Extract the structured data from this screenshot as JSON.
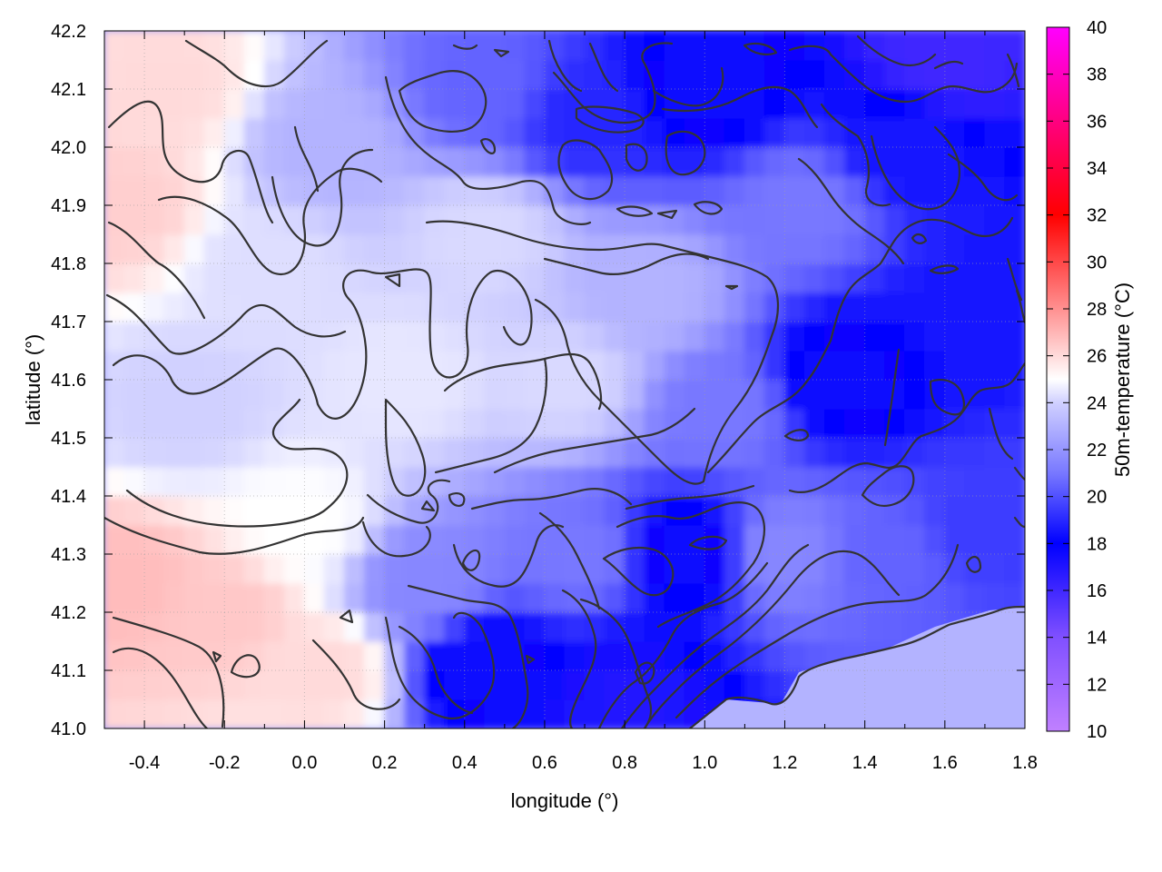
{
  "chart_data": {
    "type": "heatmap",
    "title": "",
    "xlabel": "longitude (°)",
    "ylabel": "latitude (°)",
    "colorbar_label": "50m-temperature (°C)",
    "xlim": [
      -0.5,
      1.8
    ],
    "ylim": [
      41.0,
      42.2
    ],
    "x_ticks": [
      -0.4,
      -0.2,
      0.0,
      0.2,
      0.4,
      0.6,
      0.8,
      1.0,
      1.2,
      1.4,
      1.6,
      1.8
    ],
    "x_tick_labels": [
      "-0.4",
      "-0.2",
      "0.0",
      "0.2",
      "0.4",
      "0.6",
      "0.8",
      "1.0",
      "1.2",
      "1.4",
      "1.6",
      "1.8"
    ],
    "y_ticks": [
      41.0,
      41.1,
      41.2,
      41.3,
      41.4,
      41.5,
      41.6,
      41.7,
      41.8,
      41.9,
      42.0,
      42.1,
      42.2
    ],
    "y_tick_labels": [
      "41.0",
      "41.1",
      "41.2",
      "41.3",
      "41.4",
      "41.5",
      "41.6",
      "41.7",
      "41.8",
      "41.9",
      "42.0",
      "42.1",
      "42.2"
    ],
    "colorbar_range": [
      10,
      40
    ],
    "colorbar_ticks": [
      10,
      12,
      14,
      16,
      18,
      20,
      22,
      24,
      26,
      28,
      30,
      32,
      34,
      36,
      38,
      40
    ],
    "colorbar_tick_labels": [
      "10",
      "12",
      "14",
      "16",
      "18",
      "20",
      "22",
      "24",
      "26",
      "28",
      "30",
      "32",
      "34",
      "36",
      "38",
      "40"
    ],
    "colormap": [
      {
        "value": 10,
        "color": "#c080ff"
      },
      {
        "value": 14,
        "color": "#8050ff"
      },
      {
        "value": 18,
        "color": "#0000ff"
      },
      {
        "value": 21,
        "color": "#7878ff"
      },
      {
        "value": 24,
        "color": "#d0d0ff"
      },
      {
        "value": 25,
        "color": "#ffffff"
      },
      {
        "value": 28,
        "color": "#ff9090"
      },
      {
        "value": 32,
        "color": "#ff0000"
      },
      {
        "value": 36,
        "color": "#ff0080"
      },
      {
        "value": 40,
        "color": "#ff00ff"
      }
    ],
    "grid": true,
    "contours": true,
    "sea_temperature": 23,
    "field_points": [
      {
        "lon": -0.45,
        "lat": 41.9,
        "temp": 26.3
      },
      {
        "lon": -0.45,
        "lat": 41.25,
        "temp": 26.8
      },
      {
        "lon": -0.35,
        "lat": 42.1,
        "temp": 26.0
      },
      {
        "lon": -0.3,
        "lat": 41.55,
        "temp": 24.0
      },
      {
        "lon": -0.2,
        "lat": 41.2,
        "temp": 26.5
      },
      {
        "lon": -0.1,
        "lat": 41.8,
        "temp": 24.3
      },
      {
        "lon": 0.0,
        "lat": 41.35,
        "temp": 25.0
      },
      {
        "lon": 0.05,
        "lat": 41.1,
        "temp": 26.0
      },
      {
        "lon": 0.05,
        "lat": 42.0,
        "temp": 23.0
      },
      {
        "lon": 0.25,
        "lat": 41.6,
        "temp": 24.5
      },
      {
        "lon": 0.3,
        "lat": 41.25,
        "temp": 21.5
      },
      {
        "lon": 0.45,
        "lat": 41.1,
        "temp": 17.5
      },
      {
        "lon": 0.45,
        "lat": 41.85,
        "temp": 24.2
      },
      {
        "lon": 0.45,
        "lat": 42.1,
        "temp": 20.5
      },
      {
        "lon": 0.65,
        "lat": 41.6,
        "temp": 24.2
      },
      {
        "lon": 0.7,
        "lat": 41.3,
        "temp": 21.0
      },
      {
        "lon": 0.7,
        "lat": 42.05,
        "temp": 19.0
      },
      {
        "lon": 0.8,
        "lat": 41.05,
        "temp": 17.0
      },
      {
        "lon": 0.85,
        "lat": 41.75,
        "temp": 23.0
      },
      {
        "lon": 0.95,
        "lat": 41.3,
        "temp": 17.5
      },
      {
        "lon": 1.0,
        "lat": 42.1,
        "temp": 17.5
      },
      {
        "lon": 1.05,
        "lat": 41.55,
        "temp": 21.0
      },
      {
        "lon": 1.2,
        "lat": 41.3,
        "temp": 21.5
      },
      {
        "lon": 1.25,
        "lat": 41.9,
        "temp": 21.0
      },
      {
        "lon": 1.35,
        "lat": 41.6,
        "temp": 17.5
      },
      {
        "lon": 1.45,
        "lat": 41.3,
        "temp": 20.5
      },
      {
        "lon": 1.5,
        "lat": 42.0,
        "temp": 18.5
      },
      {
        "lon": 1.6,
        "lat": 42.15,
        "temp": 16.0
      },
      {
        "lon": 1.65,
        "lat": 41.7,
        "temp": 18.5
      },
      {
        "lon": 1.7,
        "lat": 41.35,
        "temp": 19.5
      }
    ]
  }
}
